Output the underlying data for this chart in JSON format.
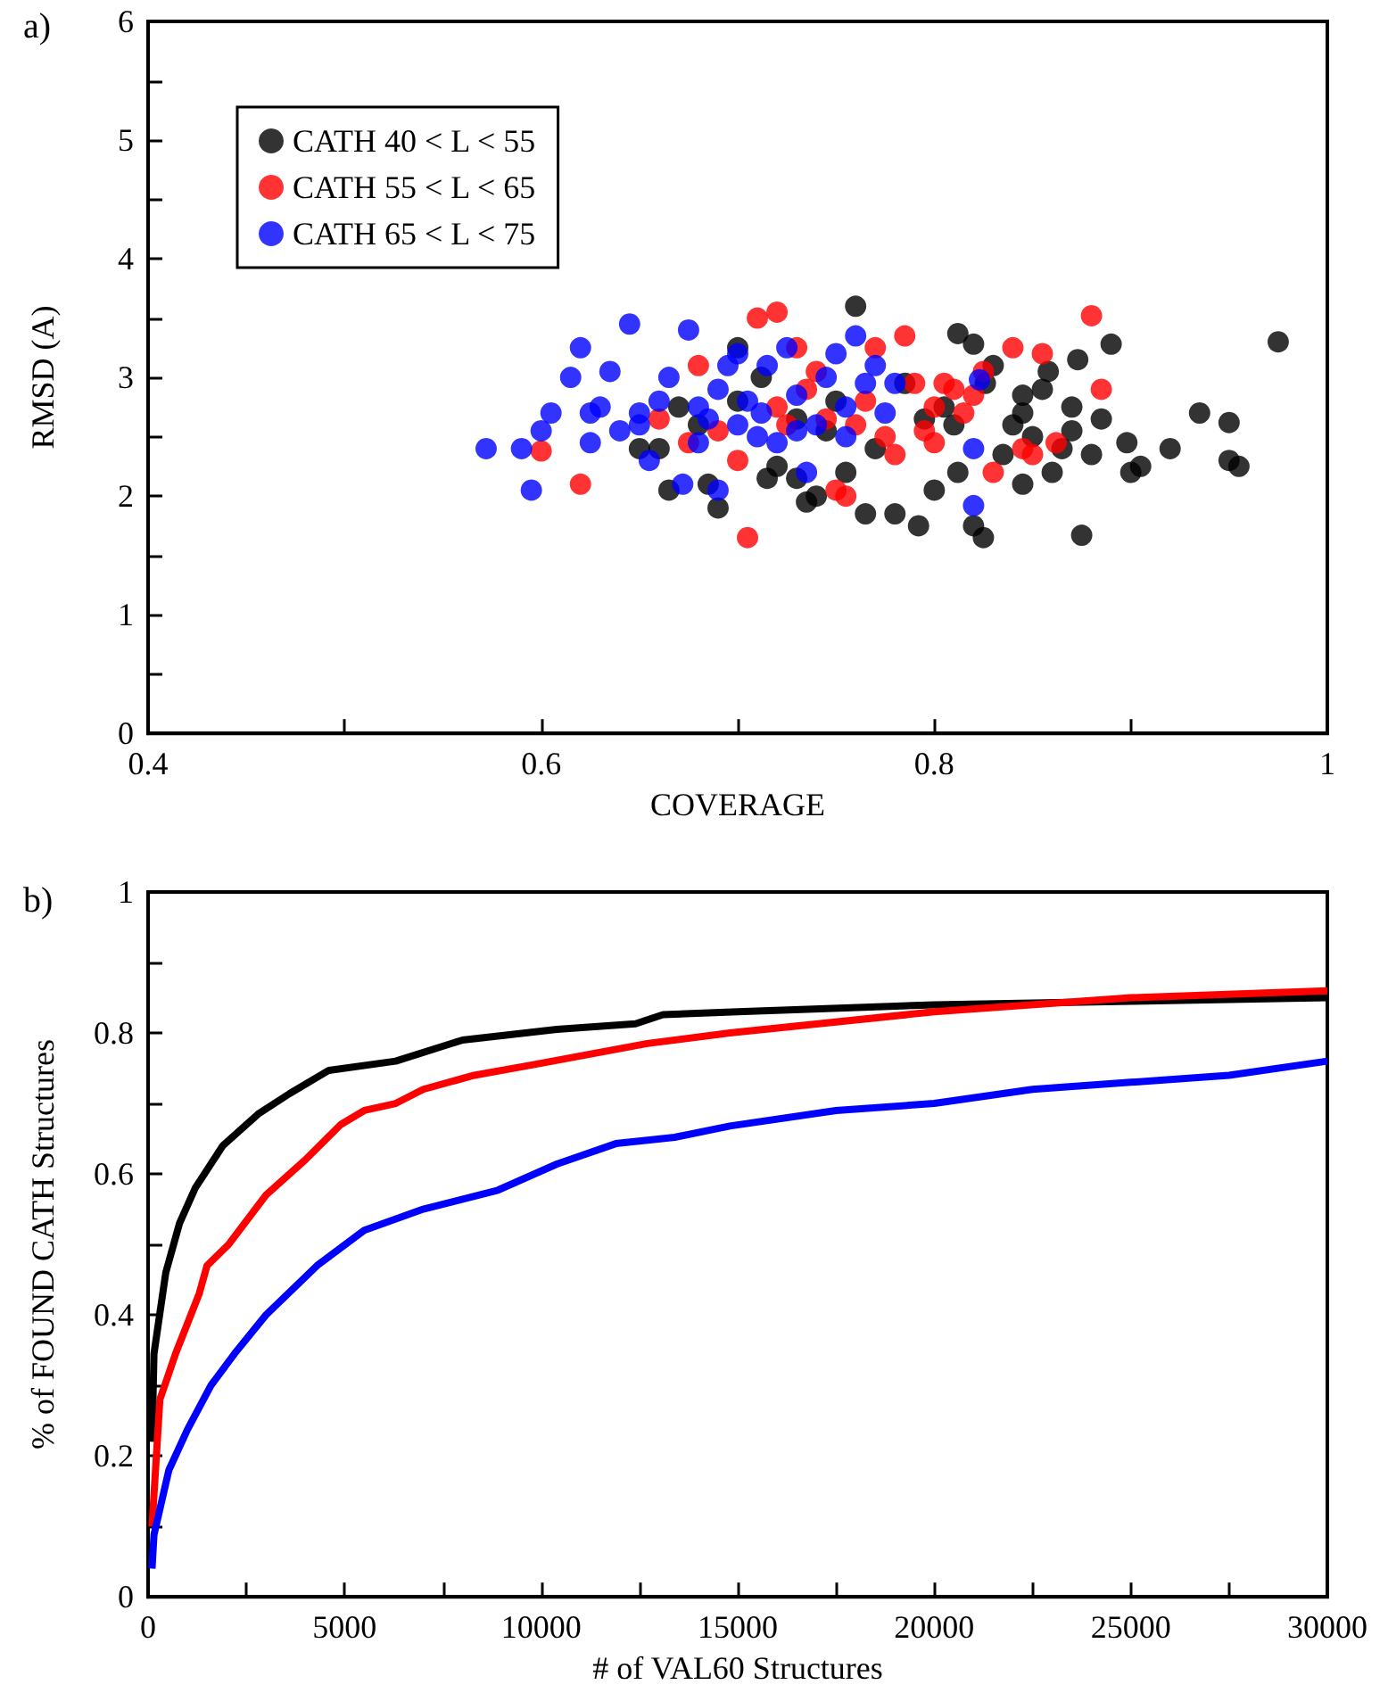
{
  "chart_data": [
    {
      "type": "scatter",
      "title": "a)",
      "xlabel": "COVERAGE",
      "ylabel": "RMSD (A)",
      "xlim": [
        0.4,
        1
      ],
      "ylim": [
        0,
        6
      ],
      "xticks": [
        0.4,
        {
          "value": 0.5,
          "label": null
        },
        0.6,
        {
          "value": 0.7,
          "label": null
        },
        0.8,
        {
          "value": 0.9,
          "label": null
        },
        1
      ],
      "yticks": [
        0,
        {
          "value": 0.5,
          "label": null
        },
        1,
        {
          "value": 1.5,
          "label": null
        },
        2,
        {
          "value": 2.5,
          "label": null
        },
        3,
        {
          "value": 3.5,
          "label": null
        },
        4,
        {
          "value": 4.5,
          "label": null
        },
        5,
        {
          "value": 5.5,
          "label": null
        },
        6
      ],
      "legend": "top left",
      "marker": "circle",
      "grid": false,
      "series": [
        {
          "name": "CATH 40 < L < 55",
          "color": "#000000",
          "x": [
            0.975,
            0.955,
            0.95,
            0.95,
            0.935,
            0.92,
            0.905,
            0.9,
            0.898,
            0.89,
            0.885,
            0.875,
            0.873,
            0.87,
            0.865,
            0.86,
            0.855,
            0.858,
            0.85,
            0.845,
            0.84,
            0.835,
            0.83,
            0.826,
            0.82,
            0.812,
            0.805,
            0.81,
            0.812,
            0.8,
            0.82,
            0.825,
            0.792,
            0.78,
            0.765,
            0.76,
            0.77,
            0.755,
            0.745,
            0.74,
            0.735,
            0.73,
            0.72,
            0.715,
            0.712,
            0.7,
            0.69,
            0.685,
            0.68,
            0.67,
            0.665,
            0.66,
            0.65,
            0.7,
            0.73,
            0.75,
            0.785,
            0.795,
            0.845,
            0.87,
            0.88,
            0.845
          ],
          "values": [
            3.3,
            2.25,
            2.3,
            2.62,
            2.7,
            2.4,
            2.25,
            2.2,
            2.45,
            3.28,
            2.65,
            1.67,
            3.15,
            2.75,
            2.4,
            2.2,
            2.9,
            3.05,
            2.5,
            2.1,
            2.6,
            2.35,
            3.1,
            2.95,
            3.28,
            3.37,
            2.75,
            2.6,
            2.2,
            2.05,
            1.75,
            1.65,
            1.75,
            1.85,
            1.85,
            3.6,
            2.4,
            2.2,
            2.55,
            2.0,
            1.95,
            2.15,
            2.25,
            2.15,
            3.0,
            3.25,
            1.9,
            2.1,
            2.6,
            2.75,
            2.05,
            2.4,
            2.4,
            2.8,
            2.65,
            2.8,
            2.95,
            2.65,
            2.7,
            2.55,
            2.35,
            2.85
          ]
        },
        {
          "name": "CATH 55 < L < 65",
          "color": "#ff0000",
          "x": [
            0.6,
            0.62,
            0.66,
            0.675,
            0.68,
            0.69,
            0.7,
            0.705,
            0.71,
            0.72,
            0.725,
            0.73,
            0.735,
            0.745,
            0.75,
            0.755,
            0.76,
            0.77,
            0.775,
            0.78,
            0.785,
            0.79,
            0.795,
            0.8,
            0.805,
            0.81,
            0.815,
            0.82,
            0.825,
            0.83,
            0.84,
            0.845,
            0.85,
            0.855,
            0.862,
            0.88,
            0.885,
            0.72,
            0.74,
            0.765,
            0.8
          ],
          "values": [
            2.38,
            2.1,
            2.65,
            2.45,
            3.1,
            2.55,
            2.3,
            1.65,
            3.5,
            3.55,
            2.6,
            3.25,
            2.9,
            2.65,
            2.05,
            2.0,
            2.6,
            3.25,
            2.5,
            2.35,
            3.35,
            2.95,
            2.55,
            2.75,
            2.95,
            2.9,
            2.7,
            2.85,
            3.05,
            2.2,
            3.25,
            2.4,
            2.35,
            3.2,
            2.45,
            3.52,
            2.9,
            2.75,
            3.05,
            2.8,
            2.45
          ]
        },
        {
          "name": "CATH 65 < L < 75",
          "color": "#0000ff",
          "x": [
            0.572,
            0.59,
            0.595,
            0.6,
            0.605,
            0.615,
            0.62,
            0.625,
            0.63,
            0.635,
            0.64,
            0.645,
            0.65,
            0.655,
            0.66,
            0.665,
            0.625,
            0.672,
            0.675,
            0.68,
            0.685,
            0.69,
            0.695,
            0.7,
            0.705,
            0.71,
            0.715,
            0.72,
            0.725,
            0.73,
            0.735,
            0.74,
            0.745,
            0.75,
            0.755,
            0.76,
            0.765,
            0.77,
            0.775,
            0.78,
            0.82,
            0.82,
            0.823,
            0.7,
            0.69,
            0.68,
            0.712,
            0.73,
            0.755,
            0.65
          ],
          "values": [
            2.4,
            2.4,
            2.05,
            2.55,
            2.7,
            3.0,
            3.25,
            2.7,
            2.75,
            3.05,
            2.55,
            3.45,
            2.6,
            2.3,
            2.8,
            3.0,
            2.45,
            2.1,
            3.4,
            2.45,
            2.65,
            2.05,
            3.1,
            3.2,
            2.8,
            2.5,
            3.1,
            2.45,
            3.25,
            2.85,
            2.2,
            2.6,
            3.0,
            3.2,
            2.75,
            3.35,
            2.95,
            3.1,
            2.7,
            2.95,
            2.4,
            1.92,
            2.98,
            2.6,
            2.9,
            2.75,
            2.7,
            2.55,
            2.5,
            2.7
          ]
        }
      ]
    },
    {
      "type": "line",
      "title": "b)",
      "xlabel": "# of VAL60 Structures",
      "ylabel": "% of FOUND CATH Structures",
      "xlim": [
        0,
        30000
      ],
      "ylim": [
        0,
        1
      ],
      "xticks": [
        0,
        {
          "value": 2500,
          "label": null
        },
        5000,
        {
          "value": 7500,
          "label": null
        },
        10000,
        {
          "value": 12500,
          "label": null
        },
        15000,
        {
          "value": 17500,
          "label": null
        },
        20000,
        {
          "value": 22500,
          "label": null
        },
        25000,
        {
          "value": 27500,
          "label": null
        },
        30000
      ],
      "yticks": [
        0,
        {
          "value": 0.1,
          "label": null
        },
        0.2,
        {
          "value": 0.3,
          "label": null
        },
        0.4,
        {
          "value": 0.5,
          "label": null
        },
        0.6,
        {
          "value": 0.7,
          "label": null
        },
        0.8,
        {
          "value": 0.9,
          "label": null
        },
        1
      ],
      "marker": "none",
      "grid": false,
      "series": [
        {
          "color": "#000000",
          "x": [
            100,
            150,
            450,
            800,
            1200,
            1900,
            2800,
            3600,
            4600,
            6300,
            8000,
            10400,
            12400,
            13100,
            15000,
            20000,
            25000,
            30000
          ],
          "values": [
            0.22,
            0.345,
            0.46,
            0.53,
            0.58,
            0.64,
            0.685,
            0.714,
            0.747,
            0.76,
            0.79,
            0.805,
            0.813,
            0.826,
            0.83,
            0.84,
            0.845,
            0.85
          ]
        },
        {
          "color": "#ff0000",
          "x": [
            100,
            300,
            700,
            1300,
            1500,
            2050,
            3000,
            4000,
            4900,
            5500,
            6300,
            7000,
            8300,
            9800,
            12700,
            14800,
            20000,
            25000,
            30000
          ],
          "values": [
            0.1,
            0.28,
            0.345,
            0.43,
            0.47,
            0.5,
            0.57,
            0.62,
            0.67,
            0.69,
            0.7,
            0.72,
            0.74,
            0.755,
            0.785,
            0.8,
            0.83,
            0.85,
            0.86
          ]
        },
        {
          "color": "#0000ff",
          "x": [
            100,
            150,
            530,
            1000,
            1600,
            2200,
            3000,
            4300,
            5500,
            7000,
            8900,
            10400,
            11900,
            13400,
            14800,
            17500,
            20000,
            22500,
            25000,
            27500,
            30000
          ],
          "values": [
            0.04,
            0.088,
            0.18,
            0.237,
            0.3,
            0.345,
            0.4,
            0.47,
            0.52,
            0.55,
            0.577,
            0.614,
            0.643,
            0.652,
            0.668,
            0.69,
            0.7,
            0.72,
            0.73,
            0.74,
            0.76
          ]
        }
      ]
    }
  ]
}
